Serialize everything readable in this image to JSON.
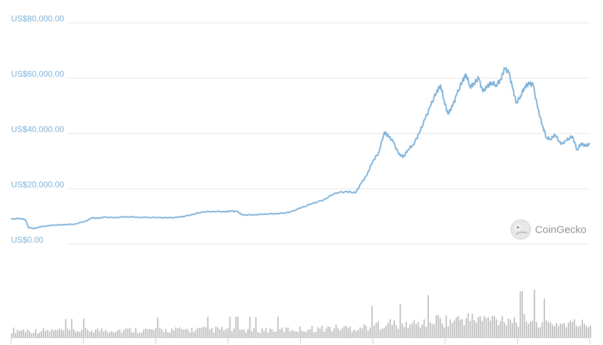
{
  "colors": {
    "line": "#7aafd8",
    "grid": "#e6e6e6",
    "tick_text": "#7aafd8",
    "volume": "#b3b3b3",
    "axis": "#cfcfcf"
  },
  "watermark": {
    "text": "CoinGecko",
    "icon": "gecko-logo-icon"
  },
  "chart_data": {
    "type": "line",
    "title": "",
    "xlabel": "",
    "ylabel": "",
    "ylim": [
      0,
      80000
    ],
    "grid": true,
    "legend": "none",
    "y_ticks": [
      {
        "value": 80000,
        "label": "US$80,000.00"
      },
      {
        "value": 60000,
        "label": "US$60,000.00"
      },
      {
        "value": 40000,
        "label": "US$40,000.00"
      },
      {
        "value": 20000,
        "label": "US$20,000.00"
      },
      {
        "value": 0,
        "label": "US$0.00"
      }
    ],
    "x_index_range": [
      0,
      100
    ],
    "series": [
      {
        "values": [
          [
            0,
            9000
          ],
          [
            1.5,
            9300
          ],
          [
            2.5,
            8800
          ],
          [
            3,
            6000
          ],
          [
            4,
            5600
          ],
          [
            5,
            6200
          ],
          [
            7,
            6800
          ],
          [
            9,
            7000
          ],
          [
            11,
            7200
          ],
          [
            13,
            8400
          ],
          [
            14,
            9500
          ],
          [
            15,
            9300
          ],
          [
            16,
            9700
          ],
          [
            18,
            9600
          ],
          [
            20,
            9900
          ],
          [
            22,
            9700
          ],
          [
            25,
            9600
          ],
          [
            27,
            9500
          ],
          [
            29,
            9700
          ],
          [
            31,
            10500
          ],
          [
            33,
            11600
          ],
          [
            35,
            11800
          ],
          [
            37,
            11700
          ],
          [
            38,
            11900
          ],
          [
            39,
            11800
          ],
          [
            40,
            10500
          ],
          [
            42,
            10600
          ],
          [
            44,
            10900
          ],
          [
            46,
            11000
          ],
          [
            48,
            11400
          ],
          [
            50,
            13000
          ],
          [
            52,
            14600
          ],
          [
            54,
            16000
          ],
          [
            56,
            18500
          ],
          [
            58,
            19000
          ],
          [
            59.5,
            18500
          ],
          [
            60.5,
            22000
          ],
          [
            61.5,
            25000
          ],
          [
            62.5,
            30000
          ],
          [
            63.5,
            33000
          ],
          [
            64.5,
            40500
          ],
          [
            65.2,
            39000
          ],
          [
            66,
            37000
          ],
          [
            67,
            32500
          ],
          [
            67.8,
            31500
          ],
          [
            68.5,
            34000
          ],
          [
            69.5,
            36000
          ],
          [
            70.5,
            40000
          ],
          [
            71.5,
            45000
          ],
          [
            72.5,
            50000
          ],
          [
            73.5,
            55000
          ],
          [
            74.2,
            57500
          ],
          [
            74.8,
            52000
          ],
          [
            75.5,
            47000
          ],
          [
            76.3,
            50000
          ],
          [
            77,
            54000
          ],
          [
            78,
            59000
          ],
          [
            78.6,
            61500
          ],
          [
            79.3,
            57000
          ],
          [
            80,
            58000
          ],
          [
            80.8,
            60000
          ],
          [
            81.5,
            55000
          ],
          [
            82.3,
            57000
          ],
          [
            83,
            58500
          ],
          [
            83.8,
            57500
          ],
          [
            84.6,
            59500
          ],
          [
            85.3,
            63500
          ],
          [
            86,
            62000
          ],
          [
            86.7,
            56000
          ],
          [
            87.3,
            51000
          ],
          [
            88,
            53500
          ],
          [
            88.8,
            57000
          ],
          [
            89.5,
            58000
          ],
          [
            90.2,
            57500
          ],
          [
            91,
            49000
          ],
          [
            91.8,
            43000
          ],
          [
            92.5,
            38500
          ],
          [
            93.2,
            38000
          ],
          [
            94,
            39500
          ],
          [
            95,
            36000
          ],
          [
            96,
            37500
          ],
          [
            97,
            39000
          ],
          [
            97.8,
            34000
          ],
          [
            98.5,
            36500
          ],
          [
            99.2,
            35500
          ],
          [
            100,
            36000
          ]
        ]
      }
    ]
  }
}
